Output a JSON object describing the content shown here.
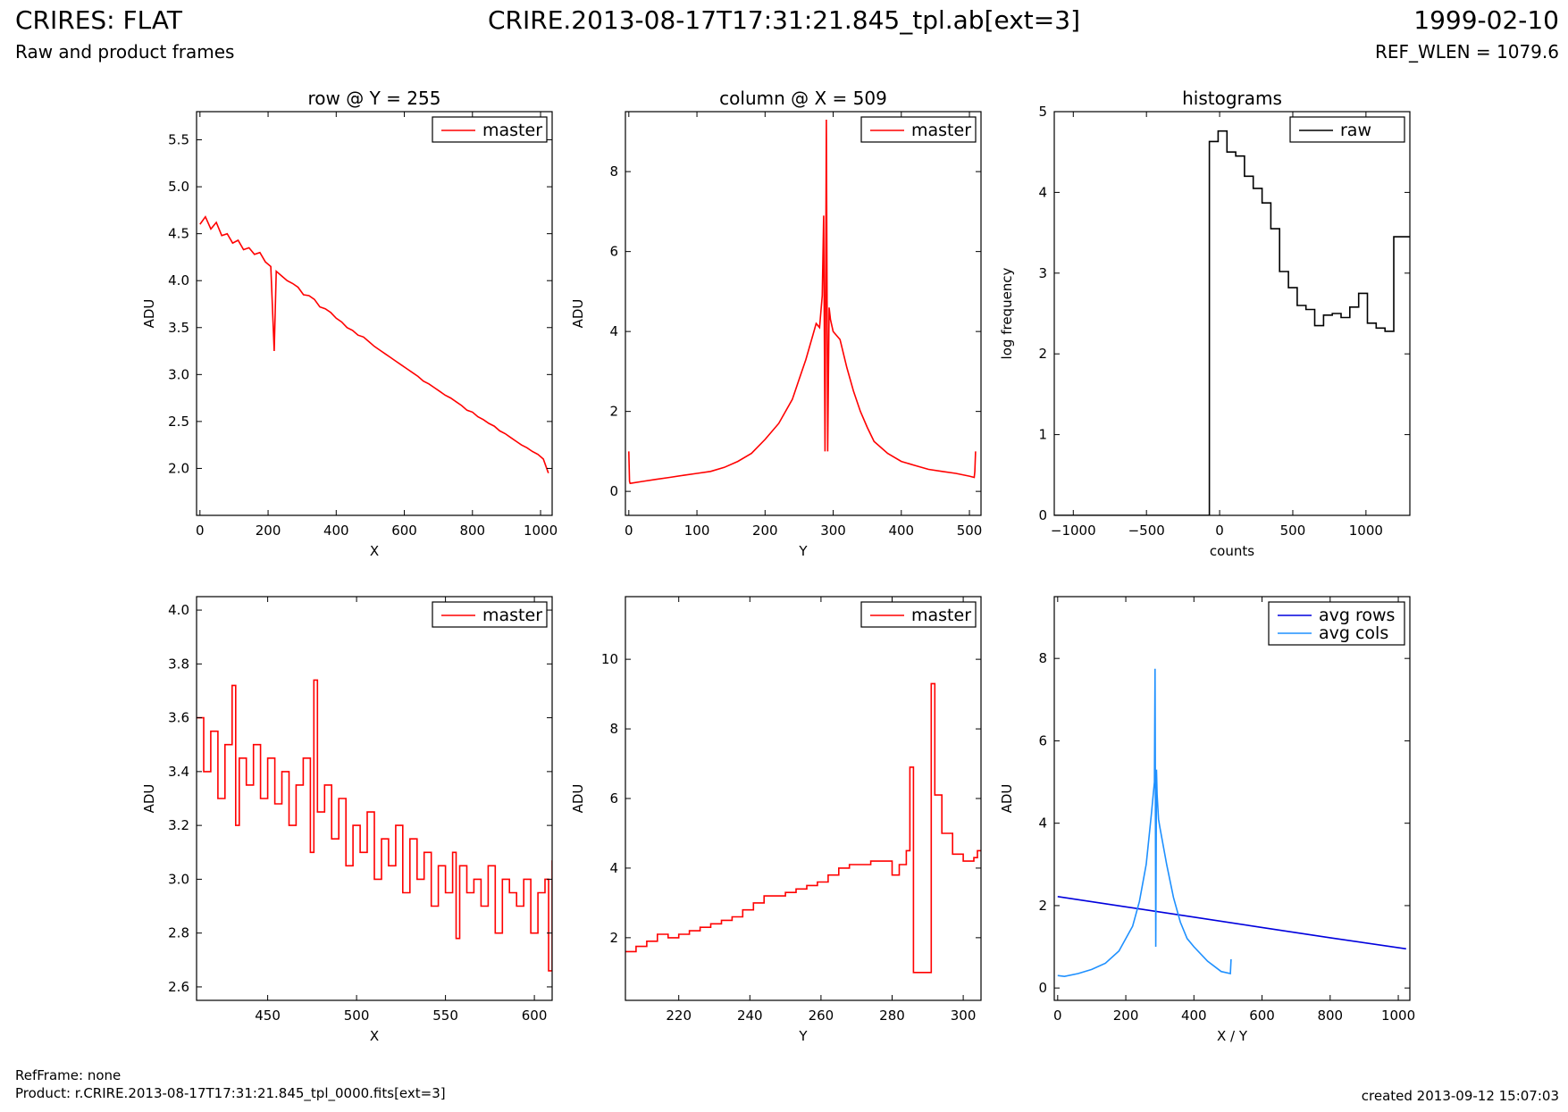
{
  "header": {
    "title_left": "CRIRES: FLAT",
    "subtitle_left": "Raw and product frames",
    "title_center": "CRIRE.2013-08-17T17:31:21.845_tpl.ab[ext=3]",
    "title_right": "1999-02-10",
    "subtitle_right": "REF_WLEN = 1079.6"
  },
  "footer": {
    "refframe": "RefFrame: none",
    "product": "Product: r.CRIRE.2013-08-17T17:31:21.845_tpl_0000.fits[ext=3]",
    "created": "created 2013-09-12 15:07:03"
  },
  "colors": {
    "red": "#ff0000",
    "black": "#000000",
    "blue": "#0000dd",
    "lightblue": "#1e90ff"
  },
  "chart_data": [
    {
      "id": "row",
      "type": "line",
      "title": "row @ Y = 255",
      "xlabel": "X",
      "ylabel": "ADU",
      "xlim": [
        -10,
        1034
      ],
      "ylim": [
        1.5,
        5.8
      ],
      "xticks": [
        0,
        200,
        400,
        600,
        800,
        1000
      ],
      "yticks": [
        2.0,
        2.5,
        3.0,
        3.5,
        4.0,
        4.5,
        5.0,
        5.5
      ],
      "ytick_decimals": 1,
      "legend_position": "top-right",
      "series": [
        {
          "name": "master",
          "color": "#ff0000",
          "style": "line",
          "x": [
            0,
            16,
            32,
            48,
            64,
            80,
            96,
            112,
            128,
            144,
            160,
            176,
            192,
            208,
            218,
            224,
            240,
            256,
            272,
            288,
            304,
            320,
            336,
            352,
            368,
            384,
            400,
            416,
            432,
            448,
            464,
            480,
            496,
            512,
            528,
            544,
            560,
            576,
            592,
            608,
            624,
            640,
            656,
            672,
            688,
            704,
            720,
            736,
            752,
            768,
            784,
            800,
            816,
            832,
            848,
            864,
            880,
            896,
            912,
            928,
            944,
            960,
            976,
            992,
            1008,
            1023
          ],
          "y": [
            4.6,
            4.68,
            4.55,
            4.62,
            4.48,
            4.5,
            4.4,
            4.43,
            4.33,
            4.35,
            4.28,
            4.3,
            4.2,
            4.15,
            3.25,
            4.1,
            4.05,
            4.0,
            3.97,
            3.93,
            3.85,
            3.84,
            3.8,
            3.72,
            3.7,
            3.66,
            3.6,
            3.56,
            3.5,
            3.47,
            3.42,
            3.4,
            3.35,
            3.3,
            3.26,
            3.22,
            3.18,
            3.14,
            3.1,
            3.06,
            3.02,
            2.98,
            2.93,
            2.9,
            2.86,
            2.82,
            2.78,
            2.75,
            2.71,
            2.67,
            2.62,
            2.6,
            2.55,
            2.52,
            2.48,
            2.45,
            2.4,
            2.37,
            2.33,
            2.29,
            2.25,
            2.22,
            2.18,
            2.15,
            2.1,
            1.95
          ]
        }
      ]
    },
    {
      "id": "column",
      "type": "line",
      "title": "column @ X = 509",
      "xlabel": "Y",
      "ylabel": "ADU",
      "xlim": [
        -5,
        517
      ],
      "ylim": [
        -0.6,
        9.5
      ],
      "xticks": [
        0,
        100,
        200,
        300,
        400,
        500
      ],
      "yticks": [
        0,
        2,
        4,
        6,
        8
      ],
      "ytick_decimals": 0,
      "legend_position": "top-right",
      "series": [
        {
          "name": "master",
          "color": "#ff0000",
          "style": "line",
          "x": [
            0,
            1,
            2,
            20,
            40,
            60,
            80,
            100,
            120,
            140,
            160,
            180,
            200,
            220,
            240,
            250,
            260,
            270,
            275,
            280,
            284,
            286,
            288,
            290,
            292,
            294,
            296,
            300,
            310,
            320,
            330,
            340,
            350,
            360,
            380,
            400,
            420,
            440,
            460,
            480,
            500,
            507,
            508,
            509
          ],
          "y": [
            1.0,
            0.25,
            0.2,
            0.25,
            0.3,
            0.35,
            0.4,
            0.45,
            0.5,
            0.6,
            0.75,
            0.95,
            1.3,
            1.7,
            2.3,
            2.8,
            3.3,
            3.9,
            4.2,
            4.1,
            4.9,
            6.9,
            1.0,
            9.3,
            1.0,
            4.6,
            4.3,
            4.0,
            3.8,
            3.1,
            2.5,
            2.0,
            1.6,
            1.25,
            0.95,
            0.75,
            0.65,
            0.55,
            0.5,
            0.45,
            0.38,
            0.35,
            0.5,
            1.0
          ]
        }
      ]
    },
    {
      "id": "hist",
      "type": "line",
      "title": "histograms",
      "xlabel": "counts",
      "ylabel": "log frequency",
      "xlim": [
        -1130,
        1300
      ],
      "ylim": [
        0,
        5
      ],
      "xticks": [
        -1000,
        -500,
        0,
        500,
        1000
      ],
      "yticks": [
        0,
        1,
        2,
        3,
        4,
        5
      ],
      "ytick_decimals": 0,
      "legend_position": "top-right",
      "series": [
        {
          "name": "raw",
          "color": "#000000",
          "style": "step",
          "x": [
            -1130,
            -70,
            -70,
            -10,
            50,
            110,
            170,
            230,
            290,
            350,
            410,
            470,
            530,
            590,
            650,
            710,
            770,
            830,
            890,
            950,
            1010,
            1070,
            1130,
            1190,
            1250,
            1300
          ],
          "y": [
            0,
            0,
            4.63,
            4.76,
            4.5,
            4.45,
            4.2,
            4.05,
            3.87,
            3.55,
            3.02,
            2.82,
            2.6,
            2.55,
            2.35,
            2.48,
            2.5,
            2.45,
            2.58,
            2.75,
            2.38,
            2.32,
            2.28,
            3.45,
            3.45,
            3.45
          ]
        }
      ]
    },
    {
      "id": "row-zoom",
      "type": "line",
      "title": "",
      "xlabel": "X",
      "ylabel": "ADU",
      "xlim": [
        410,
        610
      ],
      "ylim": [
        2.55,
        4.05
      ],
      "xticks": [
        450,
        500,
        550,
        600
      ],
      "yticks": [
        2.6,
        2.8,
        3.0,
        3.2,
        3.4,
        3.6,
        3.8,
        4.0
      ],
      "ytick_decimals": 1,
      "legend_position": "top-right",
      "series": [
        {
          "name": "master",
          "color": "#ff0000",
          "style": "step",
          "x": [
            410,
            414,
            418,
            422,
            426,
            430,
            432,
            434,
            438,
            442,
            446,
            450,
            454,
            458,
            462,
            466,
            470,
            474,
            476,
            478,
            482,
            486,
            490,
            494,
            498,
            502,
            506,
            510,
            514,
            518,
            522,
            526,
            530,
            534,
            538,
            542,
            546,
            550,
            554,
            556,
            558,
            562,
            566,
            570,
            574,
            578,
            582,
            586,
            590,
            594,
            598,
            602,
            606,
            608,
            610
          ],
          "y": [
            3.6,
            3.4,
            3.55,
            3.3,
            3.5,
            3.72,
            3.2,
            3.45,
            3.35,
            3.5,
            3.3,
            3.45,
            3.28,
            3.4,
            3.2,
            3.35,
            3.45,
            3.1,
            3.74,
            3.25,
            3.35,
            3.15,
            3.3,
            3.05,
            3.2,
            3.1,
            3.25,
            3.0,
            3.15,
            3.05,
            3.2,
            2.95,
            3.15,
            3.0,
            3.1,
            2.9,
            3.05,
            2.95,
            3.1,
            2.78,
            3.05,
            2.95,
            3.0,
            2.9,
            3.05,
            2.8,
            3.0,
            2.95,
            2.9,
            3.0,
            2.8,
            2.95,
            3.0,
            2.66,
            3.07
          ]
        }
      ]
    },
    {
      "id": "column-zoom",
      "type": "line",
      "title": "",
      "xlabel": "Y",
      "ylabel": "ADU",
      "xlim": [
        205,
        305
      ],
      "ylim": [
        0.2,
        11.8
      ],
      "xticks": [
        220,
        240,
        260,
        280,
        300
      ],
      "yticks": [
        2,
        4,
        6,
        8,
        10
      ],
      "ytick_decimals": 0,
      "legend_position": "top-right",
      "series": [
        {
          "name": "master",
          "color": "#ff0000",
          "style": "step",
          "x": [
            205,
            208,
            211,
            214,
            217,
            220,
            223,
            226,
            229,
            232,
            235,
            238,
            241,
            244,
            247,
            250,
            253,
            256,
            259,
            262,
            265,
            268,
            271,
            274,
            277,
            280,
            282,
            284,
            285,
            286,
            291,
            292,
            294,
            297,
            300,
            303,
            304,
            305
          ],
          "y": [
            1.6,
            1.75,
            1.9,
            2.1,
            2.0,
            2.1,
            2.2,
            2.3,
            2.4,
            2.5,
            2.6,
            2.8,
            3.0,
            3.2,
            3.2,
            3.3,
            3.4,
            3.5,
            3.6,
            3.8,
            4.0,
            4.1,
            4.1,
            4.2,
            4.2,
            3.8,
            4.1,
            4.5,
            6.9,
            1.0,
            9.3,
            6.1,
            5.0,
            4.4,
            4.2,
            4.3,
            4.5,
            4.5
          ]
        }
      ]
    },
    {
      "id": "avg",
      "type": "line",
      "title": "",
      "xlabel": "X / Y",
      "ylabel": "ADU",
      "xlim": [
        -10,
        1034
      ],
      "ylim": [
        -0.3,
        9.5
      ],
      "xticks": [
        0,
        200,
        400,
        600,
        800,
        1000
      ],
      "yticks": [
        0,
        2,
        4,
        6,
        8
      ],
      "ytick_decimals": 0,
      "legend_position": "top-right",
      "series": [
        {
          "name": "avg rows",
          "color": "#0000dd",
          "style": "line",
          "x": [
            0,
            200,
            400,
            600,
            800,
            1023
          ],
          "y": [
            2.22,
            1.97,
            1.72,
            1.47,
            1.22,
            0.95
          ]
        },
        {
          "name": "avg cols",
          "color": "#1e90ff",
          "style": "line",
          "x": [
            0,
            2,
            20,
            60,
            100,
            140,
            180,
            220,
            240,
            260,
            275,
            284,
            286,
            288,
            290,
            292,
            296,
            300,
            320,
            340,
            360,
            380,
            400,
            440,
            480,
            507,
            509
          ],
          "y": [
            0.3,
            0.3,
            0.28,
            0.35,
            0.45,
            0.6,
            0.9,
            1.5,
            2.1,
            3.0,
            4.2,
            5.0,
            7.75,
            1.0,
            5.3,
            4.7,
            4.1,
            3.9,
            3.0,
            2.2,
            1.6,
            1.2,
            1.0,
            0.65,
            0.4,
            0.35,
            0.7
          ]
        }
      ]
    }
  ]
}
